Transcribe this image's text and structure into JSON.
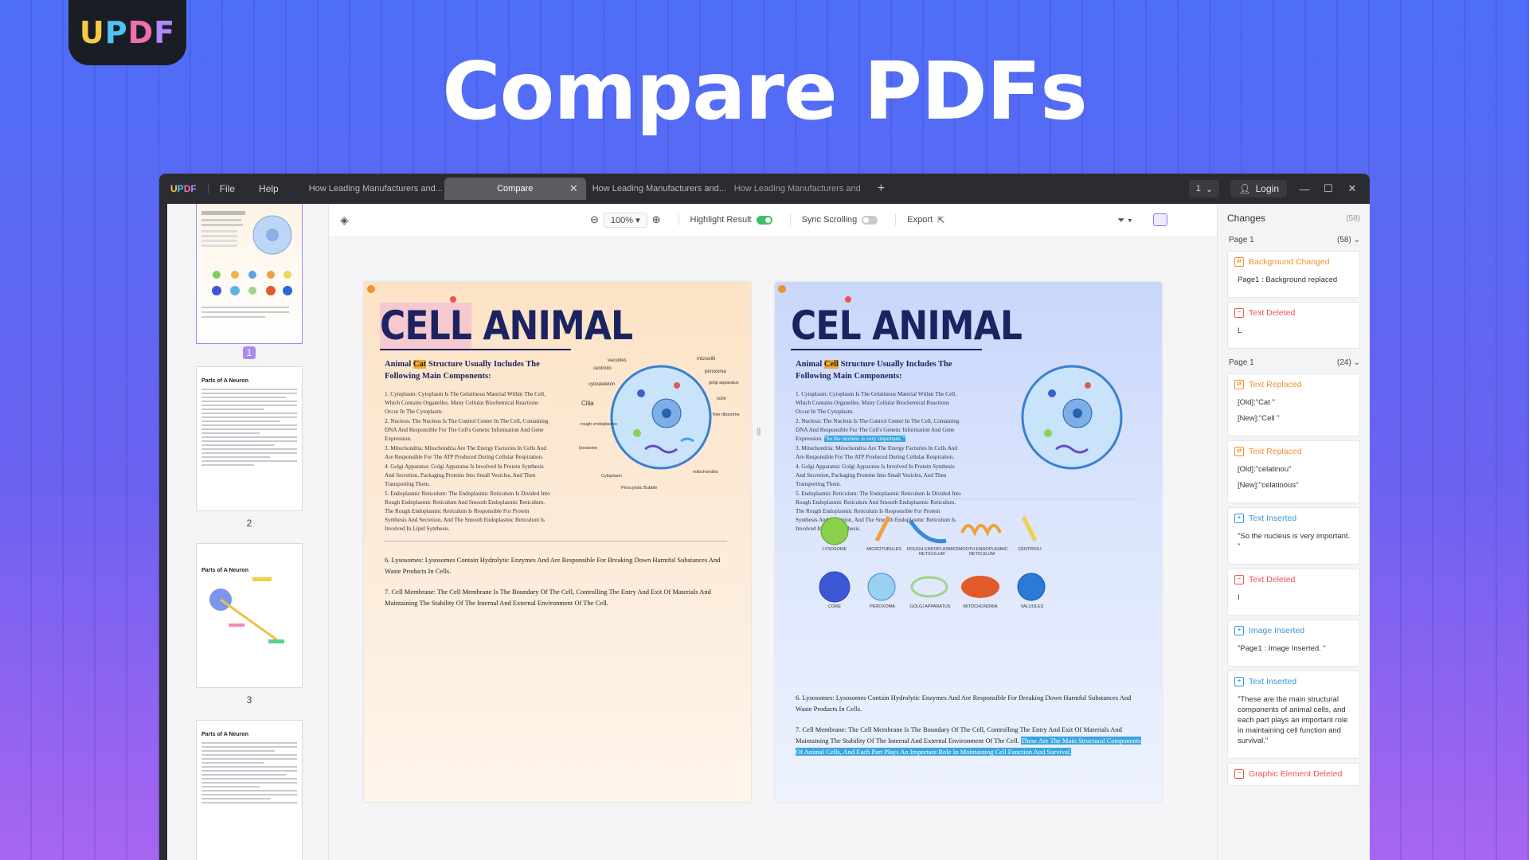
{
  "brand": {
    "logo_letters": [
      "U",
      "P",
      "D",
      "F"
    ],
    "logo_colors": [
      "#f7c948",
      "#4fc3f7",
      "#ef6fb0",
      "#b388ff"
    ]
  },
  "hero": {
    "title": "Compare PDFs"
  },
  "app": {
    "logo": "UPDF",
    "menu": [
      "File",
      "Help"
    ],
    "tabs": [
      {
        "label": "How Leading Manufacturers and...",
        "active": false
      },
      {
        "label": "Compare",
        "active": true
      },
      {
        "label": "How Leading Manufacturers and...",
        "active": false
      },
      {
        "label": "How Leading Manufacturers and",
        "active": false
      }
    ],
    "page_select": "1",
    "login": "Login"
  },
  "toolbar": {
    "zoom": "100%",
    "highlight_label": "Highlight Result",
    "highlight_on": true,
    "sync_label": "Sync Scrolling",
    "sync_on": false,
    "export_label": "Export"
  },
  "thumbnails": [
    {
      "num": "1",
      "title": "",
      "active": true
    },
    {
      "num": "2",
      "title": "Parts of A Neuron",
      "active": false
    },
    {
      "num": "3",
      "title": "Parts of A Neuron",
      "active": false
    },
    {
      "num": "",
      "title": "Parts of A Neuron",
      "active": false
    }
  ],
  "left_doc": {
    "title_a": "CELL",
    "title_b": "ANIMAL",
    "sub_pre": "Animal ",
    "sub_hl": "Cat",
    "sub_post": " Structure Usually Includes The Following Main Components:",
    "body": [
      "1. Cytoplasm: Cytoplasm Is The Gelatinous Material Within The Cell, Which Contains Organelles. Many Cellular Biochemical Reactions Occur In The Cytoplasm.",
      "2. Nucleus: The Nucleus Is The Control Center In The Cell, Containing DNA And Responsible For The Cell's Genetic Information And Gene Expression.",
      "3. Mitochondria: Mitochondria Are The Energy Factories In Cells And Are Responsible For The ATP Produced During Cellular Respiration.",
      "4. Golgi Apparatus: Golgi Apparatus Is Involved In Protein Synthesis And Secretion, Packaging Proteins Into Small Vesicles, And Then Transporting Them.",
      "5. Endoplasmic Reticulum: The Endoplasmic Reticulum Is Divided Into Rough Endoplasmic Reticulum And Smooth Endoplasmic Reticulum. The Rough Endoplasmic Reticulum Is Responsible For Protein Synthesis And Secretion, And The Smooth Endoplasmic Reticulum Is Involved In Lipid Synthesis."
    ],
    "item6": "6. Lysosomes: Lysosomes Contain Hydrolytic Enzymes And Are Responsible For Breaking Down Harmful Substances And Waste Products In Cells.",
    "item7": "7. Cell Membrane: The Cell Membrane Is The Boundary Of The Cell, Controlling The Entry And Exit Of Materials And Maintaining The Stability Of The Internal And External Environment Of The Cell."
  },
  "right_doc": {
    "title_a": "CEL",
    "title_b": "ANIMAL",
    "sub_pre": "Animal ",
    "sub_hl": "Cell",
    "sub_post": " Structure Usually Includes The Following Main Components:",
    "item6": "6. Lysosomes: Lysosomes Contain Hydrolytic Enzymes And Are Responsible For Breaking Down Harmful Substances And Waste Products In Cells.",
    "item7": "7. Cell Membrane: The Cell Membrane Is The Boundary Of The Cell, Controlling The Entry And Exit Of Materials And Maintaining The Stability Of The Internal And External Environment Of The Cell. ",
    "item7_inserted": "These Are The Main Structural Components Of Animal Cells, And Each Part Plays An Important Role In Maintaining Cell Function And Survival.",
    "organelles": [
      "LYSOSOME",
      "MICROTUBULES",
      "ROUGH ENDOPLASMIC RETICULUM",
      "SMOOTH ENDOPLASMIC RETICULUM",
      "CENTRIOLI",
      "CORE",
      "PEROXOMA",
      "GOLGI APPARATUS",
      "MITOCHONDRIA",
      "VALUOLES"
    ]
  },
  "cell_labels": [
    "vacuoles",
    "microvilli",
    "centriolo",
    "peroxoma",
    "cytoskeleton",
    "golgi apparatus",
    "Cilia",
    "core",
    "rough endoplasmic",
    "free ribosome",
    "lysosome",
    "Cytoplasm",
    "Pinocytotic Bubble",
    "mitochondria"
  ],
  "changes": {
    "title": "Changes",
    "count": "(58)",
    "groups": [
      {
        "label": "Page 1",
        "count": "(58)",
        "items": [
          {
            "type": "Background Changed",
            "color": "orange",
            "lines": [
              "Page1 : Background replaced"
            ]
          },
          {
            "type": "Text Deleted",
            "color": "red",
            "lines": [
              "L"
            ]
          }
        ]
      },
      {
        "label": "Page 1",
        "count": "(24)",
        "items": [
          {
            "type": "Text Replaced",
            "color": "orange",
            "lines": [
              "[Old]:\"Cat \"",
              "[New]:\"Cell \""
            ]
          },
          {
            "type": "Text Replaced",
            "color": "orange",
            "lines": [
              "[Old]:\"celatinou\"",
              "[New]:\"celatinous\""
            ]
          },
          {
            "type": "Text Inserted",
            "color": "blue",
            "lines": [
              "\"So the nucleus is very important. \""
            ]
          },
          {
            "type": "Text Deleted",
            "color": "red",
            "lines": [
              "I"
            ]
          },
          {
            "type": "Image Inserted",
            "color": "blue",
            "lines": [
              "\"Page1 : Image Inserted. \""
            ]
          },
          {
            "type": "Text Inserted",
            "color": "blue",
            "lines": [
              "\"These are the main structural components of animal cells, and each part plays an important role in maintaining cell function and survival.\""
            ]
          },
          {
            "type": "Graphic Element Deleted",
            "color": "red",
            "lines": []
          }
        ]
      }
    ]
  }
}
